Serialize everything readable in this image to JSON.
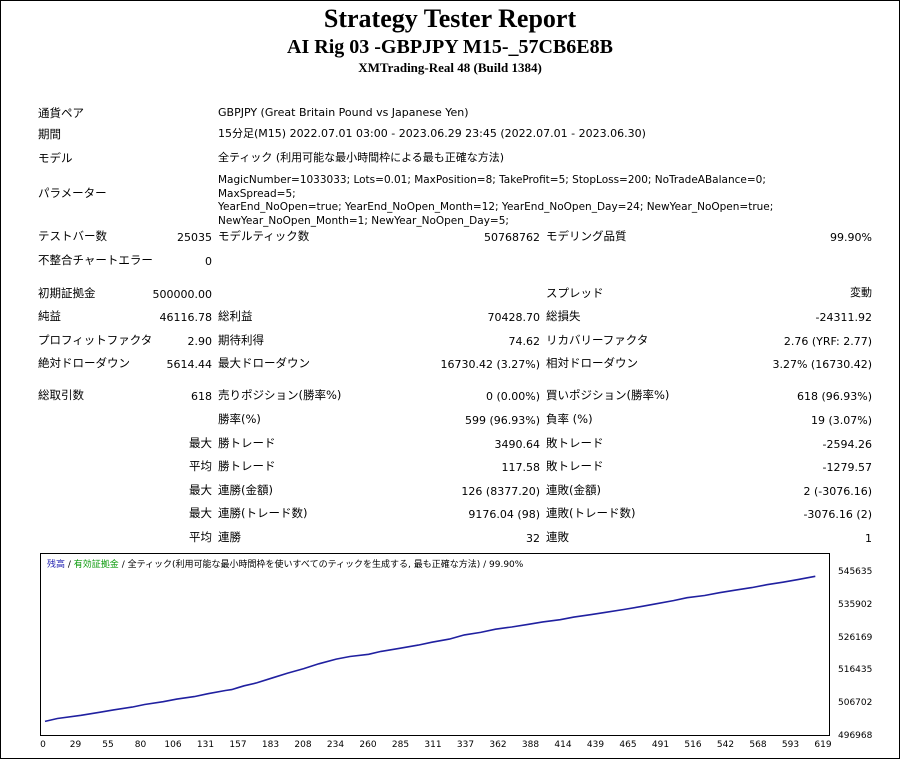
{
  "header": {
    "title": "Strategy Tester Report",
    "subtitle": "AI Rig 03 -GBPJPY M15-_57CB6E8B",
    "server": "XMTrading-Real 48 (Build 1384)"
  },
  "info": {
    "symbol_label": "通貨ペア",
    "symbol_value": "GBPJPY (Great Britain Pound vs Japanese Yen)",
    "period_label": "期間",
    "period_value": "15分足(M15) 2022.07.01 03:00 - 2023.06.29 23:45 (2022.07.01 - 2023.06.30)",
    "model_label": "モデル",
    "model_value": "全ティック (利用可能な最小時間枠による最も正確な方法)",
    "params_label": "パラメーター",
    "params_line1": "MagicNumber=1033033; Lots=0.01; MaxPosition=8; TakeProfit=5; StopLoss=200; NoTradeABalance=0; MaxSpread=5;",
    "params_line2": "YearEnd_NoOpen=true; YearEnd_NoOpen_Month=12; YearEnd_NoOpen_Day=24; NewYear_NoOpen=true;",
    "params_line3": "NewYear_NoOpen_Month=1; NewYear_NoOpen_Day=5;"
  },
  "stats": {
    "bars_label": "テストバー数",
    "bars": "25035",
    "ticks_label": "モデルティック数",
    "ticks": "50768762",
    "quality_label": "モデリング品質",
    "quality": "99.90%",
    "mismatch_label": "不整合チャートエラー",
    "mismatch": "0",
    "deposit_label": "初期証拠金",
    "deposit": "500000.00",
    "spread_label": "スプレッド",
    "spread": "変動",
    "net_label": "純益",
    "net": "46116.78",
    "gross_profit_label": "総利益",
    "gross_profit": "70428.70",
    "gross_loss_label": "総損失",
    "gross_loss": "-24311.92",
    "pf_label": "プロフィットファクタ",
    "pf": "2.90",
    "expected_label": "期待利得",
    "expected": "74.62",
    "recovery_label": "リカバリーファクタ",
    "recovery": "2.76 (YRF: 2.77)",
    "abs_dd_label": "絶対ドローダウン",
    "abs_dd": "5614.44",
    "max_dd_label": "最大ドローダウン",
    "max_dd": "16730.42 (3.27%)",
    "rel_dd_label": "相対ドローダウン",
    "rel_dd": "3.27% (16730.42)",
    "trades_label": "総取引数",
    "trades": "618",
    "short_label": "売りポジション(勝率%)",
    "short": "0 (0.00%)",
    "long_label": "買いポジション(勝率%)",
    "long": "618 (96.93%)",
    "win_label": "勝率(%)",
    "win": "599 (96.93%)",
    "loss_label": "負率 (%)",
    "loss": "19 (3.07%)",
    "max_word": "最大",
    "avg_word": "平均",
    "largest_win_label": "勝トレード",
    "largest_win": "3490.64",
    "largest_loss_label": "敗トレード",
    "largest_loss": "-2594.26",
    "avg_win_label": "勝トレード",
    "avg_win": "117.58",
    "avg_loss_label": "敗トレード",
    "avg_loss": "-1279.57",
    "max_cons_win_label": "連勝(金額)",
    "max_cons_win": "126 (8377.20)",
    "max_cons_loss_label": "連敗(金額)",
    "max_cons_loss": "2 (-3076.16)",
    "max_cons_profit_label": "連勝(トレード数)",
    "max_cons_profit": "9176.04 (98)",
    "max_cons_lossamt_label": "連敗(トレード数)",
    "max_cons_lossamt": "-3076.16 (2)",
    "avg_cons_win_label": "連勝",
    "avg_cons_win": "32",
    "avg_cons_loss_label": "連敗",
    "avg_cons_loss": "1"
  },
  "chart_legend": {
    "balance": "残高",
    "equity": "有効証拠金",
    "rest": "/ 全ティック(利用可能な最小時間枠を使いすべてのティックを生成する, 最も正確な方法) / 99.90%"
  },
  "chart_data": {
    "type": "line",
    "y_ticks": [
      "545635",
      "535902",
      "526169",
      "516435",
      "506702",
      "496968"
    ],
    "x_ticks": [
      "0",
      "29",
      "55",
      "80",
      "106",
      "131",
      "157",
      "183",
      "208",
      "234",
      "260",
      "285",
      "311",
      "337",
      "362",
      "388",
      "414",
      "439",
      "465",
      "491",
      "516",
      "542",
      "568",
      "593",
      "619"
    ],
    "ylim": [
      496968,
      547000
    ],
    "xlim": [
      0,
      630
    ],
    "series": [
      {
        "color": "#2020a0",
        "x": [
          0,
          10,
          29,
          45,
          55,
          70,
          80,
          95,
          106,
          120,
          131,
          145,
          150,
          155,
          160,
          170,
          183,
          195,
          208,
          220,
          234,
          245,
          260,
          270,
          285,
          300,
          311,
          325,
          337,
          350,
          362,
          375,
          388,
          400,
          414,
          425,
          439,
          450,
          465,
          480,
          491,
          505,
          516,
          530,
          542,
          555,
          568,
          580,
          593,
          605,
          619
        ],
        "y": [
          500000,
          500900,
          501900,
          502900,
          503600,
          504500,
          505300,
          506200,
          507000,
          507800,
          508700,
          509700,
          510000,
          510600,
          511200,
          512100,
          513700,
          515200,
          516600,
          518100,
          519600,
          520400,
          521100,
          522000,
          523000,
          524000,
          524900,
          525900,
          527200,
          528000,
          529000,
          529700,
          530500,
          531300,
          532000,
          532800,
          533600,
          534300,
          535200,
          536200,
          537000,
          538000,
          538900,
          539600,
          540500,
          541300,
          542100,
          543000,
          543800,
          544600,
          545635
        ]
      }
    ]
  }
}
